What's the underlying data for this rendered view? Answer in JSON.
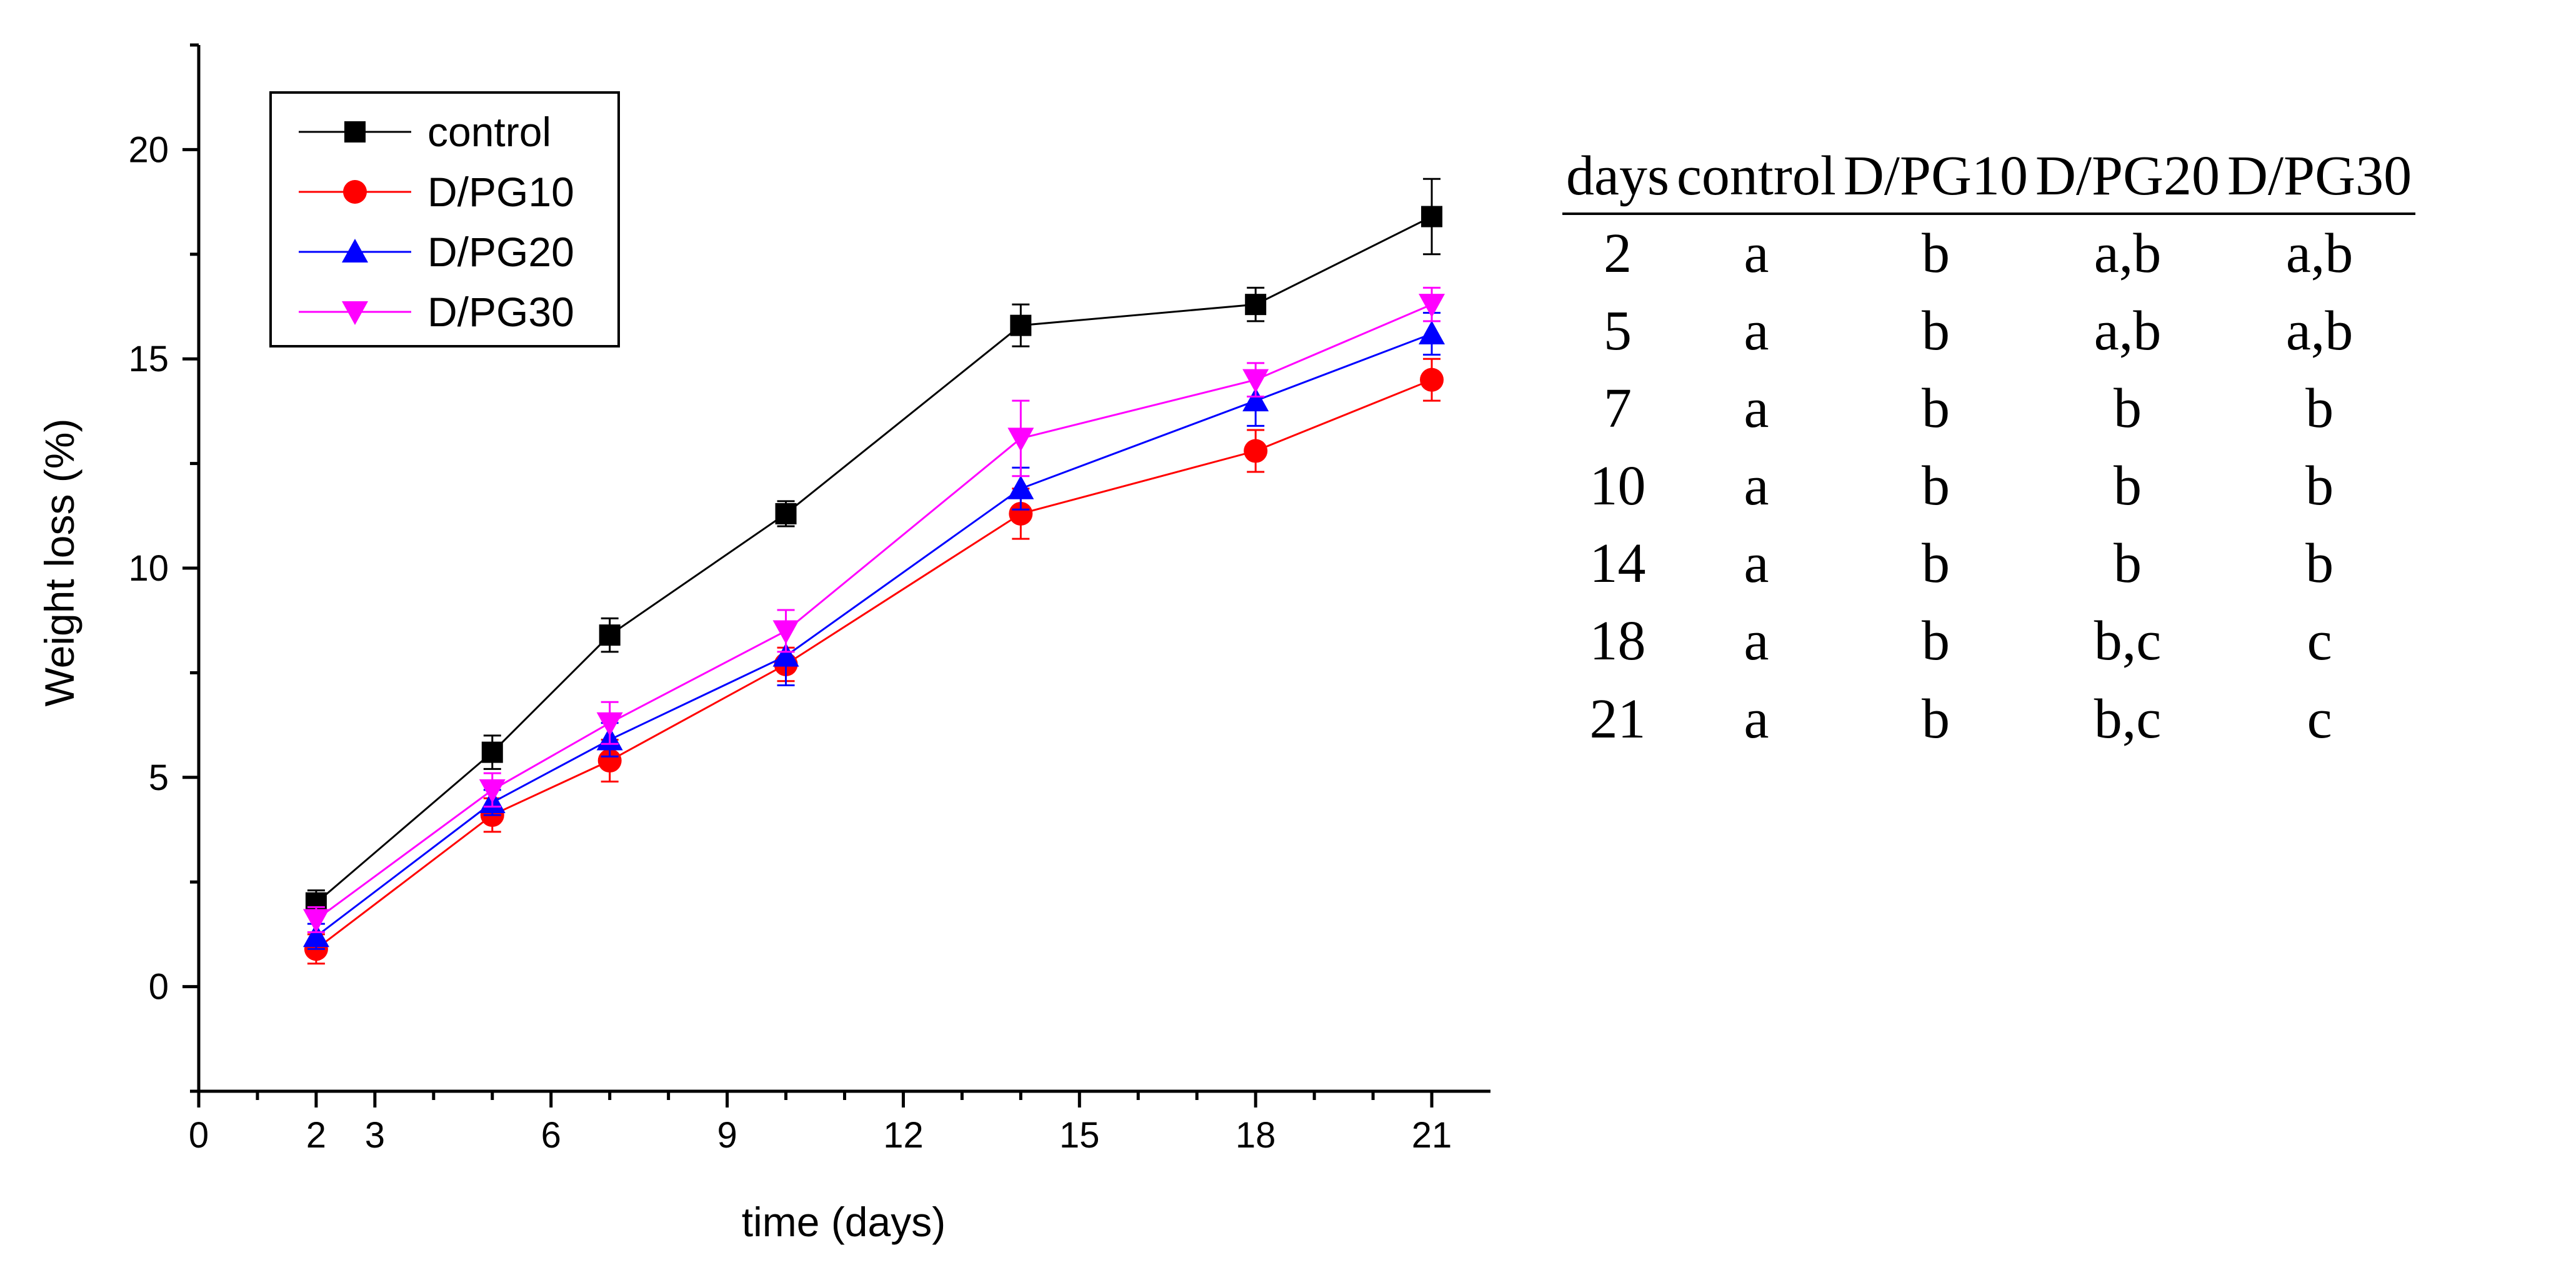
{
  "chart_data": {
    "type": "line",
    "xlabel": "time (days)",
    "ylabel": "Weight loss (%)",
    "xlim": [
      0,
      22
    ],
    "ylim": [
      -2.5,
      22.5
    ],
    "xticks": [
      0,
      2,
      3,
      6,
      9,
      12,
      15,
      18,
      21
    ],
    "yticks": [
      0,
      5,
      10,
      15,
      20
    ],
    "legend_position": "top-left",
    "series": [
      {
        "name": "control",
        "color": "#000000",
        "marker": "square",
        "x": [
          2,
          5,
          7,
          10,
          14,
          18,
          21
        ],
        "y": [
          2.0,
          5.6,
          8.4,
          11.3,
          15.8,
          16.3,
          18.4
        ],
        "err": [
          0.3,
          0.4,
          0.4,
          0.3,
          0.5,
          0.4,
          0.9
        ]
      },
      {
        "name": "D/PG10",
        "color": "#ff0000",
        "marker": "circle",
        "x": [
          2,
          5,
          7,
          10,
          14,
          18,
          21
        ],
        "y": [
          0.9,
          4.1,
          5.4,
          7.7,
          11.3,
          12.8,
          14.5
        ],
        "err": [
          0.35,
          0.4,
          0.5,
          0.4,
          0.6,
          0.5,
          0.5
        ]
      },
      {
        "name": "D/PG20",
        "color": "#0000ff",
        "marker": "triangle-up",
        "x": [
          2,
          5,
          7,
          10,
          14,
          18,
          21
        ],
        "y": [
          1.2,
          4.4,
          5.9,
          7.9,
          11.9,
          14.0,
          15.6
        ],
        "err": [
          0.3,
          0.3,
          0.4,
          0.7,
          0.5,
          0.6,
          0.5
        ]
      },
      {
        "name": "D/PG30",
        "color": "#ff00ff",
        "marker": "triangle-down",
        "x": [
          2,
          5,
          7,
          10,
          14,
          18,
          21
        ],
        "y": [
          1.6,
          4.7,
          6.3,
          8.5,
          13.1,
          14.5,
          16.3
        ],
        "err": [
          0.3,
          0.4,
          0.5,
          0.5,
          0.9,
          0.4,
          0.4
        ]
      }
    ]
  },
  "table": {
    "headers": [
      "days",
      "control",
      "D/PG10",
      "D/PG20",
      "D/PG30"
    ],
    "rows": [
      [
        "2",
        "a",
        "b",
        "a,b",
        "a,b"
      ],
      [
        "5",
        "a",
        "b",
        "a,b",
        "a,b"
      ],
      [
        "7",
        "a",
        "b",
        "b",
        "b"
      ],
      [
        "10",
        "a",
        "b",
        "b",
        "b"
      ],
      [
        "14",
        "a",
        "b",
        "b",
        "b"
      ],
      [
        "18",
        "a",
        "b",
        "b,c",
        "c"
      ],
      [
        "21",
        "a",
        "b",
        "b,c",
        "c"
      ]
    ]
  }
}
